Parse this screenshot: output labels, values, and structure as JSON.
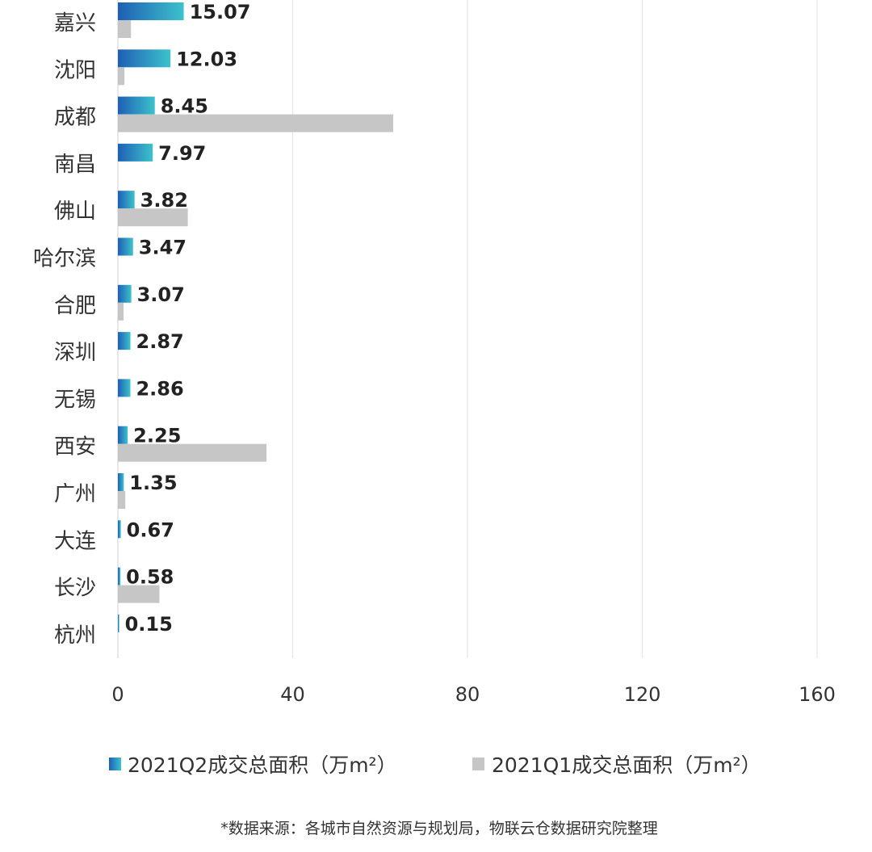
{
  "chart_data": {
    "type": "bar",
    "orientation": "horizontal",
    "categories": [
      "嘉兴",
      "沈阳",
      "成都",
      "南昌",
      "佛山",
      "哈尔滨",
      "合肥",
      "深圳",
      "无锡",
      "西安",
      "广州",
      "大连",
      "长沙",
      "杭州"
    ],
    "series": [
      {
        "name": "2021Q2成交总面积（万m²）",
        "values": [
          15.07,
          12.03,
          8.45,
          7.97,
          3.82,
          3.47,
          3.07,
          2.87,
          2.86,
          2.25,
          1.35,
          0.67,
          0.58,
          0.15
        ],
        "labels": [
          "15.07",
          "12.03",
          "8.45",
          "7.97",
          "3.82",
          "3.47",
          "3.07",
          "2.87",
          "2.86",
          "2.25",
          "1.35",
          "0.67",
          "0.58",
          "0.15"
        ],
        "color_start": "#1f5fb5",
        "color_end": "#3cc2cc"
      },
      {
        "name": "2021Q1成交总面积（万m²）",
        "values": [
          3.0,
          1.5,
          63.0,
          0,
          16.0,
          0,
          1.3,
          0,
          0,
          34.0,
          1.7,
          0,
          9.5,
          0
        ],
        "color": "#c6c6c6"
      }
    ],
    "xlim": [
      0,
      160
    ],
    "xticks": [
      "0",
      "40",
      "80",
      "120",
      "160"
    ],
    "grid": true,
    "legend_position": "bottom"
  },
  "source_note": "*数据来源：各城市自然资源与规划局，物联云仓数据研究院整理"
}
